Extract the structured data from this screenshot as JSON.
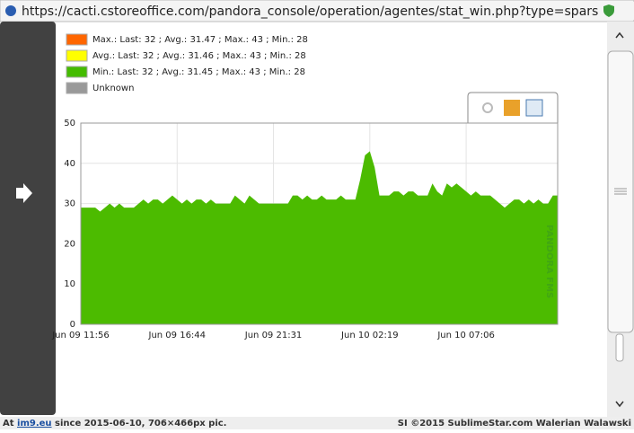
{
  "url": "https://cacti.cstoreoffice.com/pandora_console/operation/agentes/stat_win.php?type=sparse&period=",
  "chart_data": {
    "type": "area",
    "legend": [
      {
        "name": "Max.: Last: 32 ; Avg.: 31.47 ; Max.: 43 ; Min.: 28",
        "color": "#ff6600"
      },
      {
        "name": "Avg.: Last: 32 ; Avg.: 31.46 ; Max.: 43 ; Min.: 28",
        "color": "#ffff00"
      },
      {
        "name": "Min.: Last: 32 ; Avg.: 31.45 ; Max.: 43 ; Min.: 28",
        "color": "#44bb00"
      },
      {
        "name": "Unknown",
        "color": "#999999"
      }
    ],
    "color": "#4cbb00",
    "values": [
      29,
      29,
      29,
      29,
      28,
      29,
      30,
      29,
      30,
      29,
      29,
      29,
      30,
      31,
      30,
      31,
      31,
      30,
      31,
      32,
      31,
      30,
      31,
      30,
      31,
      31,
      30,
      31,
      30,
      30,
      30,
      30,
      32,
      31,
      30,
      32,
      31,
      30,
      30,
      30,
      30,
      30,
      30,
      30,
      32,
      32,
      31,
      32,
      31,
      31,
      32,
      31,
      31,
      31,
      32,
      31,
      31,
      31,
      36,
      42,
      43,
      39,
      32,
      32,
      32,
      33,
      33,
      32,
      33,
      33,
      32,
      32,
      32,
      35,
      33,
      32,
      35,
      34,
      35,
      34,
      33,
      32,
      33,
      32,
      32,
      32,
      31,
      30,
      29,
      30,
      31,
      31,
      30,
      31,
      30,
      31,
      30,
      30,
      32,
      32
    ],
    "xlim": [
      0,
      99
    ],
    "xticks": [
      {
        "value": 0,
        "label": "Jun 09 11:56"
      },
      {
        "value": 20,
        "label": "Jun 09 16:44"
      },
      {
        "value": 40,
        "label": "Jun 09 21:31"
      },
      {
        "value": 60,
        "label": "Jun 10 02:19"
      },
      {
        "value": 80,
        "label": "Jun 10 07:06"
      }
    ],
    "ylim": [
      0,
      50
    ],
    "yticks": [
      0,
      10,
      20,
      30,
      40,
      50
    ],
    "grid": true,
    "watermark": "PANDORA FMS"
  },
  "footer": {
    "left_prefix": "At ",
    "site": "im9.eu",
    "left_suffix": " since 2015-06-10, 706×466px pic.",
    "right": "SI ©2015 SublimeStar.com Walerian Walawski"
  }
}
